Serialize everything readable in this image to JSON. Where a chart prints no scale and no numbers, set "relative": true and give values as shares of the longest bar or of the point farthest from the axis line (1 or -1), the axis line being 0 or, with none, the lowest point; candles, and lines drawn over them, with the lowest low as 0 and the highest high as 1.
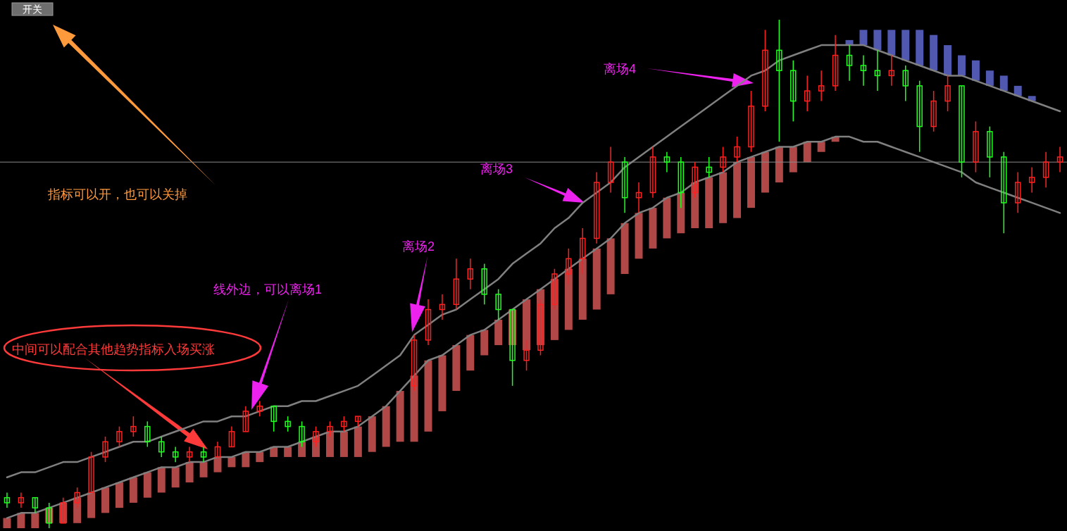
{
  "chart_data": {
    "type": "candlestick",
    "relative": true,
    "categories": [
      null,
      null,
      null,
      null,
      null,
      null,
      null,
      null,
      null,
      null,
      null,
      null,
      null,
      null,
      null,
      null,
      null,
      null,
      null,
      null,
      null,
      null,
      null,
      null,
      null,
      null,
      null,
      null,
      null,
      null,
      null,
      null,
      null,
      null,
      null,
      null,
      null,
      null,
      null,
      null,
      null,
      null,
      null,
      null,
      null,
      null,
      null,
      null,
      null,
      null,
      null,
      null,
      null,
      null,
      null,
      null,
      null,
      null,
      null,
      null,
      null,
      null,
      null,
      null,
      null,
      null,
      null,
      null,
      null,
      null,
      null,
      null,
      null,
      null,
      null,
      null
    ],
    "ohlc": [
      [
        0.06,
        0.07,
        0.04,
        0.05
      ],
      [
        0.05,
        0.07,
        0.04,
        0.06
      ],
      [
        0.06,
        0.06,
        0.03,
        0.04
      ],
      [
        0.04,
        0.05,
        0.0,
        0.01
      ],
      [
        0.01,
        0.06,
        0.01,
        0.05
      ],
      [
        0.05,
        0.08,
        0.04,
        0.07
      ],
      [
        0.07,
        0.15,
        0.07,
        0.14
      ],
      [
        0.14,
        0.18,
        0.13,
        0.17
      ],
      [
        0.17,
        0.2,
        0.16,
        0.19
      ],
      [
        0.19,
        0.22,
        0.18,
        0.2
      ],
      [
        0.2,
        0.21,
        0.16,
        0.17
      ],
      [
        0.17,
        0.18,
        0.14,
        0.15
      ],
      [
        0.15,
        0.16,
        0.13,
        0.14
      ],
      [
        0.14,
        0.16,
        0.13,
        0.15
      ],
      [
        0.15,
        0.16,
        0.13,
        0.14
      ],
      [
        0.14,
        0.17,
        0.14,
        0.16
      ],
      [
        0.16,
        0.2,
        0.16,
        0.19
      ],
      [
        0.19,
        0.24,
        0.19,
        0.23
      ],
      [
        0.23,
        0.25,
        0.22,
        0.24
      ],
      [
        0.24,
        0.24,
        0.19,
        0.21
      ],
      [
        0.21,
        0.22,
        0.19,
        0.2
      ],
      [
        0.2,
        0.21,
        0.16,
        0.17
      ],
      [
        0.17,
        0.2,
        0.16,
        0.19
      ],
      [
        0.19,
        0.21,
        0.18,
        0.2
      ],
      [
        0.2,
        0.22,
        0.19,
        0.21
      ],
      [
        0.21,
        0.22,
        0.2,
        0.22
      ],
      null,
      null,
      null,
      [
        0.28,
        0.38,
        0.27,
        0.37
      ],
      [
        0.37,
        0.45,
        0.36,
        0.43
      ],
      [
        0.43,
        0.46,
        0.41,
        0.44
      ],
      [
        0.44,
        0.53,
        0.43,
        0.49
      ],
      [
        0.49,
        0.53,
        0.47,
        0.51
      ],
      [
        0.51,
        0.52,
        0.44,
        0.46
      ],
      [
        0.46,
        0.47,
        0.41,
        0.43
      ],
      [
        0.43,
        0.43,
        0.28,
        0.33
      ],
      [
        0.33,
        0.37,
        0.31,
        0.35
      ],
      [
        0.35,
        0.45,
        0.34,
        0.44
      ],
      [
        0.44,
        0.51,
        0.43,
        0.5
      ],
      [
        0.5,
        0.55,
        0.48,
        0.53
      ],
      [
        0.53,
        0.59,
        0.5,
        0.57
      ],
      [
        0.57,
        0.7,
        0.56,
        0.68
      ],
      [
        0.68,
        0.75,
        0.66,
        0.72
      ],
      [
        0.72,
        0.73,
        0.62,
        0.65
      ],
      [
        0.65,
        0.68,
        0.62,
        0.66
      ],
      [
        0.66,
        0.75,
        0.65,
        0.73
      ],
      [
        0.73,
        0.74,
        0.7,
        0.72
      ],
      [
        0.72,
        0.73,
        0.63,
        0.66
      ],
      [
        0.66,
        0.72,
        0.65,
        0.71
      ],
      [
        0.71,
        0.73,
        0.69,
        0.7
      ],
      [
        0.71,
        0.75,
        0.7,
        0.73
      ],
      [
        0.73,
        0.77,
        0.72,
        0.75
      ],
      [
        0.75,
        0.86,
        0.74,
        0.83
      ],
      [
        0.83,
        0.98,
        0.82,
        0.94
      ],
      [
        0.94,
        1.0,
        0.76,
        0.9
      ],
      [
        0.9,
        0.92,
        0.8,
        0.84
      ],
      [
        0.84,
        0.89,
        0.82,
        0.86
      ],
      [
        0.86,
        0.9,
        0.84,
        0.87
      ],
      [
        0.87,
        0.97,
        0.86,
        0.93
      ],
      [
        0.93,
        0.95,
        0.88,
        0.91
      ],
      [
        0.91,
        0.93,
        0.87,
        0.9
      ],
      [
        0.9,
        0.94,
        0.86,
        0.89
      ],
      [
        0.89,
        0.93,
        0.87,
        0.9
      ],
      [
        0.9,
        0.91,
        0.84,
        0.87
      ],
      [
        0.87,
        0.88,
        0.74,
        0.79
      ],
      [
        0.79,
        0.86,
        0.78,
        0.84
      ],
      [
        0.84,
        0.89,
        0.82,
        0.87
      ],
      [
        0.87,
        0.87,
        0.69,
        0.72
      ],
      [
        0.72,
        0.8,
        0.7,
        0.78
      ],
      [
        0.78,
        0.79,
        0.69,
        0.73
      ],
      [
        0.73,
        0.74,
        0.58,
        0.64
      ],
      [
        0.64,
        0.7,
        0.62,
        0.68
      ],
      [
        0.68,
        0.71,
        0.66,
        0.69
      ],
      [
        0.69,
        0.74,
        0.67,
        0.72
      ],
      [
        0.72,
        0.75,
        0.7,
        0.73
      ]
    ],
    "colors": [
      "#20ff20",
      "#ff2020",
      "#20ff20",
      "#20ff20",
      "#ff2020",
      "#ff2020",
      "#ff2020",
      "#ff2020",
      "#ff2020",
      "#ff2020",
      "#20ff20",
      "#20ff20",
      "#20ff20",
      "#ff2020",
      "#20ff20",
      "#ff2020",
      "#ff2020",
      "#ff2020",
      "#ff2020",
      "#20ff20",
      "#20ff20",
      "#20ff20",
      "#ff2020",
      "#ff2020",
      "#ff2020",
      "#ff2020",
      null,
      null,
      null,
      "#ff2020",
      "#ff2020",
      "#ff2020",
      "#ff2020",
      "#ff2020",
      "#20ff20",
      "#20ff20",
      "#20ff20",
      "#ff2020",
      "#ff2020",
      "#ff2020",
      "#ff2020",
      "#ff2020",
      "#ff2020",
      "#ff2020",
      "#20ff20",
      "#ff2020",
      "#ff2020",
      "#20ff20",
      "#20ff20",
      "#ff2020",
      "#20ff20",
      "#ff2020",
      "#ff2020",
      "#ff2020",
      "#ff2020",
      "#20ff20",
      "#20ff20",
      "#ff2020",
      "#ff2020",
      "#ff2020",
      "#20ff20",
      "#20ff20",
      "#20ff20",
      "#ff2020",
      "#20ff20",
      "#20ff20",
      "#ff2020",
      "#ff2020",
      "#20ff20",
      "#ff2020",
      "#20ff20",
      "#20ff20",
      "#ff2020",
      "#ff2020",
      "#ff2020",
      "#ff2020"
    ],
    "series": [
      {
        "type": "bar",
        "color": "#b04848",
        "base": [
          0.0,
          0.0,
          0.0,
          0.01,
          0.01,
          0.01,
          0.02,
          0.03,
          0.04,
          0.05,
          0.06,
          0.07,
          0.08,
          0.09,
          0.1,
          0.11,
          0.12,
          0.12,
          0.13,
          0.14,
          0.14,
          0.14,
          0.14,
          0.14,
          0.14,
          0.14,
          0.15,
          0.16,
          0.17,
          0.17,
          0.19,
          0.23,
          0.27,
          0.31,
          0.34,
          0.36,
          0.36,
          0.35,
          0.36,
          0.37,
          0.39,
          0.41,
          0.43,
          0.46,
          0.5,
          0.53,
          0.55,
          0.57,
          0.58,
          0.59,
          0.59,
          0.6,
          0.61,
          0.63,
          0.66,
          0.68,
          0.7,
          0.72,
          0.74,
          0.76,
          null,
          null,
          null,
          null,
          null,
          null,
          null,
          null,
          null,
          null,
          null,
          null,
          null,
          null,
          null,
          null
        ],
        "values": [
          0.02,
          0.03,
          0.03,
          0.03,
          0.04,
          0.05,
          0.05,
          0.05,
          0.05,
          0.05,
          0.05,
          0.05,
          0.04,
          0.04,
          0.03,
          0.03,
          0.02,
          0.03,
          0.02,
          0.02,
          0.02,
          0.03,
          0.04,
          0.05,
          0.05,
          0.06,
          0.07,
          0.08,
          0.1,
          0.13,
          0.14,
          0.11,
          0.09,
          0.07,
          0.05,
          0.05,
          0.07,
          0.1,
          0.11,
          0.12,
          0.12,
          0.12,
          0.12,
          0.11,
          0.1,
          0.09,
          0.08,
          0.08,
          0.08,
          0.09,
          0.1,
          0.1,
          0.11,
          0.1,
          0.08,
          0.07,
          0.05,
          0.04,
          0.02,
          0.01,
          null,
          null,
          null,
          null,
          null,
          null,
          null,
          null,
          null,
          null,
          null,
          null,
          null,
          null,
          null,
          null
        ]
      },
      {
        "type": "bar",
        "color": "#5058b0",
        "base": [
          null,
          null,
          null,
          null,
          null,
          null,
          null,
          null,
          null,
          null,
          null,
          null,
          null,
          null,
          null,
          null,
          null,
          null,
          null,
          null,
          null,
          null,
          null,
          null,
          null,
          null,
          null,
          null,
          null,
          null,
          null,
          null,
          null,
          null,
          null,
          null,
          null,
          null,
          null,
          null,
          null,
          null,
          null,
          null,
          null,
          null,
          null,
          null,
          null,
          null,
          null,
          null,
          null,
          null,
          null,
          null,
          null,
          null,
          null,
          null,
          0.95,
          0.95,
          0.94,
          0.93,
          0.92,
          0.91,
          0.9,
          0.89,
          0.89,
          0.88,
          0.87,
          0.86,
          0.85,
          0.84,
          null,
          null
        ],
        "values": [
          null,
          null,
          null,
          null,
          null,
          null,
          null,
          null,
          null,
          null,
          null,
          null,
          null,
          null,
          null,
          null,
          null,
          null,
          null,
          null,
          null,
          null,
          null,
          null,
          null,
          null,
          null,
          null,
          null,
          null,
          null,
          null,
          null,
          null,
          null,
          null,
          null,
          null,
          null,
          null,
          null,
          null,
          null,
          null,
          null,
          null,
          null,
          null,
          null,
          null,
          null,
          null,
          null,
          null,
          null,
          null,
          null,
          null,
          null,
          null,
          0.01,
          0.03,
          0.04,
          0.05,
          0.06,
          0.07,
          0.07,
          0.06,
          0.04,
          0.04,
          0.03,
          0.03,
          0.02,
          0.01,
          null,
          null
        ]
      },
      {
        "type": "line",
        "color": "#808080",
        "values": [
          0.1,
          0.11,
          0.11,
          0.12,
          0.13,
          0.13,
          0.14,
          0.15,
          0.16,
          0.17,
          0.17,
          0.18,
          0.19,
          0.2,
          0.21,
          0.21,
          0.22,
          0.22,
          0.23,
          0.24,
          0.24,
          0.25,
          0.25,
          0.26,
          0.27,
          0.28,
          0.3,
          0.32,
          0.34,
          0.38,
          0.4,
          0.42,
          0.43,
          0.45,
          0.47,
          0.49,
          0.52,
          0.54,
          0.56,
          0.59,
          0.61,
          0.64,
          0.66,
          0.68,
          0.71,
          0.73,
          0.75,
          0.77,
          0.79,
          0.81,
          0.83,
          0.85,
          0.87,
          0.89,
          0.9,
          0.92,
          0.93,
          0.94,
          0.95,
          0.95,
          0.95,
          0.95,
          0.94,
          0.93,
          0.92,
          0.91,
          0.9,
          0.89,
          0.89,
          0.88,
          0.87,
          0.86,
          0.85,
          0.84,
          0.83,
          0.82
        ]
      },
      {
        "type": "line",
        "color": "#808080",
        "values": [
          0.02,
          0.03,
          0.03,
          0.04,
          0.05,
          0.06,
          0.07,
          0.08,
          0.09,
          0.1,
          0.11,
          0.12,
          0.12,
          0.13,
          0.13,
          0.14,
          0.14,
          0.15,
          0.15,
          0.16,
          0.16,
          0.17,
          0.18,
          0.19,
          0.19,
          0.2,
          0.22,
          0.24,
          0.27,
          0.3,
          0.33,
          0.34,
          0.36,
          0.38,
          0.39,
          0.41,
          0.43,
          0.45,
          0.47,
          0.49,
          0.51,
          0.53,
          0.55,
          0.57,
          0.6,
          0.62,
          0.63,
          0.65,
          0.66,
          0.68,
          0.69,
          0.7,
          0.72,
          0.73,
          0.74,
          0.75,
          0.75,
          0.76,
          0.76,
          0.77,
          0.77,
          0.76,
          0.76,
          0.75,
          0.74,
          0.73,
          0.72,
          0.71,
          0.7,
          0.68,
          0.67,
          0.66,
          0.65,
          0.64,
          0.63,
          0.62
        ]
      }
    ],
    "ref_lines": [
      {
        "axis": "y",
        "value": 0.72,
        "color": "#8a8a8a"
      }
    ],
    "annotations": [
      "开关",
      "指标可以开，也可以关掉",
      "中间可以配合其他趋势指标入场买涨",
      "线外边，可以离场1",
      "离场2",
      "离场3",
      "离场4"
    ]
  }
}
